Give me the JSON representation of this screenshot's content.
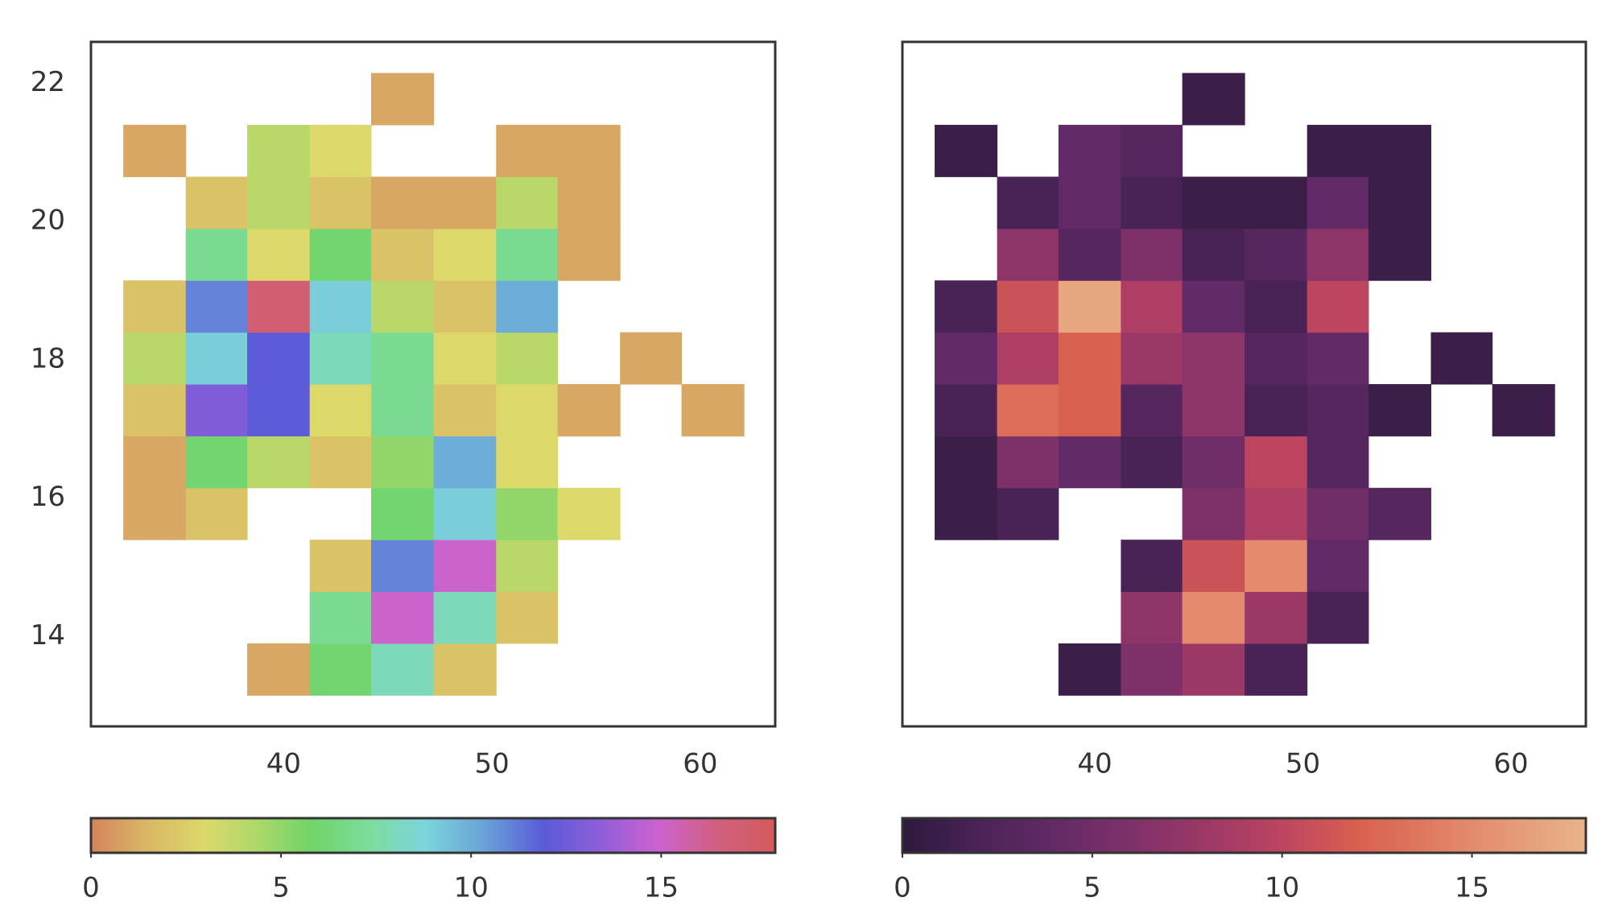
{
  "chart_data": [
    {
      "type": "hist2d",
      "xedges": [
        32.3,
        35.3,
        38.25,
        41.25,
        44.2,
        47.2,
        50.2,
        53.15,
        56.15,
        59.1,
        62.1
      ],
      "yedges": [
        13.15,
        13.9,
        14.65,
        15.4,
        16.15,
        16.9,
        17.65,
        18.4,
        19.15,
        19.9,
        20.65,
        21.4,
        22.15
      ],
      "counts": [
        [
          null,
          null,
          1,
          6,
          8,
          2,
          null,
          null,
          null,
          null
        ],
        [
          null,
          null,
          null,
          7,
          15,
          8,
          2,
          null,
          null,
          null
        ],
        [
          null,
          null,
          null,
          2,
          11,
          15,
          4,
          null,
          null,
          null
        ],
        [
          1,
          2,
          null,
          null,
          6,
          9,
          5,
          3,
          null,
          null
        ],
        [
          1,
          6,
          4,
          2,
          5,
          10,
          3,
          null,
          null,
          null
        ],
        [
          2,
          13,
          12,
          3,
          7,
          2,
          3,
          1,
          null,
          1
        ],
        [
          4,
          9,
          12,
          8,
          7,
          3,
          4,
          null,
          1,
          null
        ],
        [
          2,
          11,
          17,
          9,
          4,
          2,
          10,
          null,
          null,
          null
        ],
        [
          null,
          7,
          3,
          6,
          2,
          3,
          7,
          1,
          null,
          null
        ],
        [
          null,
          2,
          4,
          2,
          1,
          1,
          4,
          1,
          null,
          null
        ],
        [
          1,
          null,
          4,
          3,
          null,
          null,
          1,
          1,
          null,
          null
        ],
        [
          null,
          null,
          null,
          null,
          1,
          null,
          null,
          null,
          null,
          null
        ]
      ],
      "xlim": [
        30.75,
        63.6
      ],
      "ylim": [
        12.7,
        22.6
      ],
      "xticks": [
        40,
        50,
        60
      ],
      "yticks": [
        14,
        16,
        18,
        20,
        22
      ],
      "clim": [
        0,
        18
      ],
      "cbar_ticks": [
        0,
        5,
        10,
        15
      ],
      "colormap": [
        [
          0,
          "#d4845c"
        ],
        [
          1.5,
          "#d9b866"
        ],
        [
          3,
          "#dcd86a"
        ],
        [
          4.3,
          "#b0d86a"
        ],
        [
          5.8,
          "#70d468"
        ],
        [
          7.3,
          "#7ddc9c"
        ],
        [
          8.8,
          "#7bd5da"
        ],
        [
          10.3,
          "#6aa4d8"
        ],
        [
          11.9,
          "#5a5bd8"
        ],
        [
          13.3,
          "#8a5ed8"
        ],
        [
          14.9,
          "#cc62d0"
        ],
        [
          16.5,
          "#d0607e"
        ],
        [
          18,
          "#d45a5a"
        ]
      ]
    },
    {
      "type": "hist2d",
      "xedges": [
        32.3,
        35.3,
        38.25,
        41.25,
        44.2,
        47.2,
        50.2,
        53.15,
        56.15,
        59.1,
        62.1
      ],
      "yedges": [
        13.15,
        13.9,
        14.65,
        15.4,
        16.15,
        16.9,
        17.65,
        18.4,
        19.15,
        19.9,
        20.65,
        21.4,
        22.15
      ],
      "counts": [
        [
          null,
          null,
          1,
          6,
          8,
          2,
          null,
          null,
          null,
          null
        ],
        [
          null,
          null,
          null,
          7,
          15,
          8,
          2,
          null,
          null,
          null
        ],
        [
          null,
          null,
          null,
          2,
          11,
          15,
          4,
          null,
          null,
          null
        ],
        [
          1,
          2,
          null,
          null,
          6,
          9,
          5,
          3,
          null,
          null
        ],
        [
          1,
          6,
          4,
          2,
          5,
          10,
          3,
          null,
          null,
          null
        ],
        [
          2,
          13,
          12,
          3,
          7,
          2,
          3,
          1,
          null,
          1
        ],
        [
          4,
          9,
          12,
          8,
          7,
          3,
          4,
          null,
          1,
          null
        ],
        [
          2,
          11,
          17,
          9,
          4,
          2,
          10,
          null,
          null,
          null
        ],
        [
          null,
          7,
          3,
          6,
          2,
          3,
          7,
          1,
          null,
          null
        ],
        [
          null,
          2,
          4,
          2,
          1,
          1,
          4,
          1,
          null,
          null
        ],
        [
          1,
          null,
          4,
          3,
          null,
          null,
          1,
          1,
          null,
          null
        ],
        [
          null,
          null,
          null,
          null,
          1,
          null,
          null,
          null,
          null,
          null
        ]
      ],
      "xlim": [
        30.75,
        63.6
      ],
      "ylim": [
        12.7,
        22.6
      ],
      "xticks": [
        40,
        50,
        60
      ],
      "clim": [
        0,
        18
      ],
      "cbar_ticks": [
        0,
        5,
        10,
        15
      ],
      "colormap": [
        [
          0,
          "#2c1a3c"
        ],
        [
          2,
          "#4a2356"
        ],
        [
          4,
          "#622a66"
        ],
        [
          6,
          "#7e3169"
        ],
        [
          8,
          "#9c3866"
        ],
        [
          10,
          "#bc4560"
        ],
        [
          12,
          "#d8604f"
        ],
        [
          15,
          "#e38b6c"
        ],
        [
          18,
          "#e8b48a"
        ]
      ]
    }
  ]
}
